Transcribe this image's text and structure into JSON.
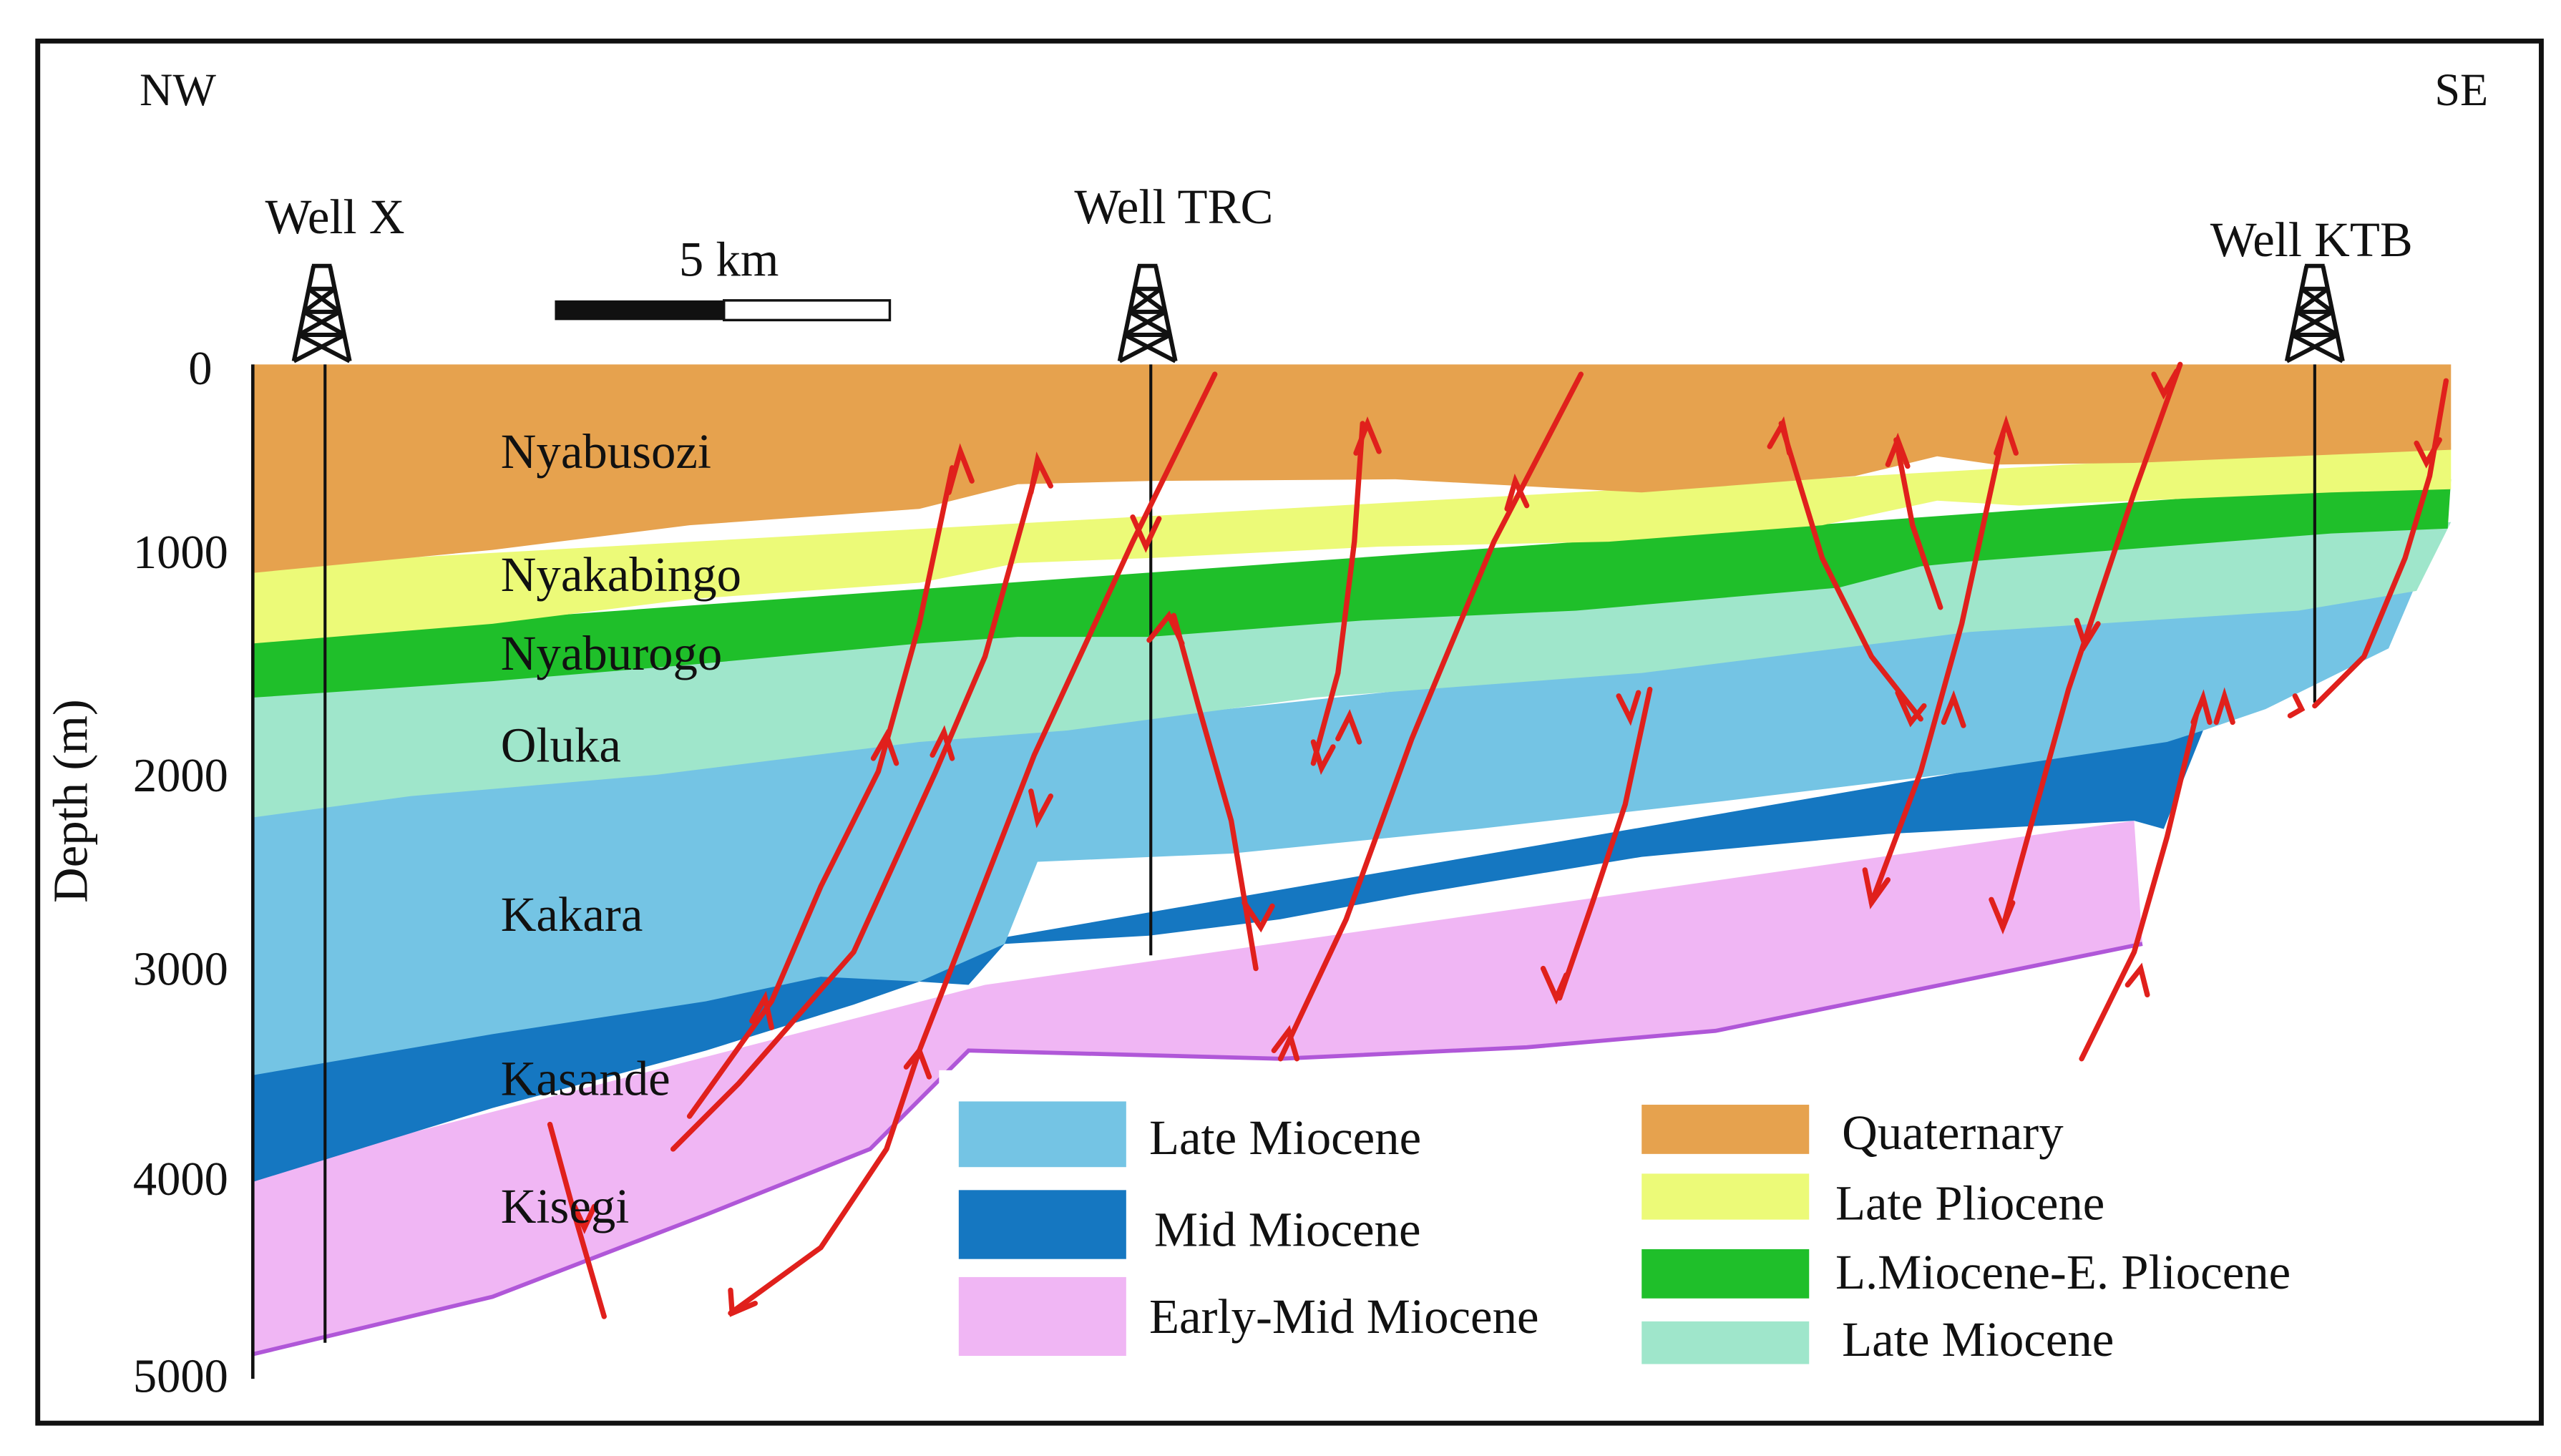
{
  "orientation": {
    "left": "NW",
    "right": "SE"
  },
  "axis": {
    "label": "Depth (m)",
    "ticks": [
      "0",
      "1000",
      "2000",
      "3000",
      "4000",
      "5000"
    ]
  },
  "scale_bar": {
    "label": "5 km"
  },
  "wells": [
    {
      "id": "well-x",
      "name": "Well X"
    },
    {
      "id": "well-trc",
      "name": "Well TRC"
    },
    {
      "id": "well-ktb",
      "name": "Well KTB"
    }
  ],
  "formations": [
    {
      "name": "Nyabusozi"
    },
    {
      "name": "Nyakabingo"
    },
    {
      "name": "Nyaburogo"
    },
    {
      "name": "Oluka"
    },
    {
      "name": "Kakara"
    },
    {
      "name": "Kasande"
    },
    {
      "name": "Kisegi"
    }
  ],
  "colors": {
    "quaternary": "#e6a24e",
    "late_pliocene": "#ecfa78",
    "l_miocene_e_pliocene": "#1fbf2a",
    "late_miocene_light": "#9fe6cb",
    "late_miocene_blue": "#74c4e4",
    "mid_miocene": "#1577c1",
    "early_mid_miocene": "#f0b6f4",
    "fault": "#e0201c",
    "basement_line": "#b057d8"
  },
  "legend": {
    "left": [
      {
        "label": "Late Miocene",
        "color": "#74c4e4"
      },
      {
        "label": "Mid Miocene",
        "color": "#1577c1"
      },
      {
        "label": "Early-Mid Miocene",
        "color": "#f0b6f4"
      }
    ],
    "right": [
      {
        "label": "Quaternary",
        "color": "#e6a24e"
      },
      {
        "label": "Late Pliocene",
        "color": "#ecfa78"
      },
      {
        "label": "L.Miocene-E. Pliocene",
        "color": "#1fbf2a"
      },
      {
        "label": "Late Miocene",
        "color": "#9fe6cb"
      }
    ]
  }
}
